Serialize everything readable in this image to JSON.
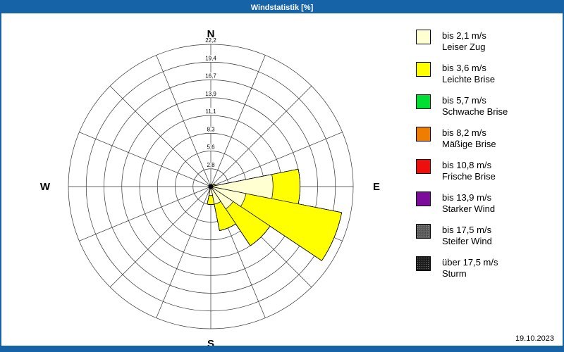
{
  "window": {
    "title": "Windstatistik [%]",
    "date": "19.10.2023"
  },
  "chart_data": {
    "type": "windrose",
    "unit": "%",
    "title": "Windstatistik [%]",
    "grid": true,
    "ring_max": 22.2,
    "ring_labels": [
      "2,8",
      "5,6",
      "8,3",
      "11,1",
      "13,9",
      "16,7",
      "19,4",
      "22,2"
    ],
    "compass_labels": {
      "north": "N",
      "east": "E",
      "south": "S",
      "west": "W"
    },
    "directions": [
      "N",
      "NNE",
      "NE",
      "ENE",
      "E",
      "ESE",
      "SE",
      "SSE",
      "S",
      "SSW",
      "SW",
      "WSW",
      "W",
      "WNW",
      "NW",
      "NNW"
    ],
    "series": [
      {
        "name": "bis 2,1 m/s",
        "color": "#FFFFD2",
        "values": [
          0,
          0,
          0,
          0.3,
          9.7,
          5.6,
          4.2,
          2.8,
          1.4,
          0,
          0,
          0,
          0,
          0,
          0,
          0
        ]
      },
      {
        "name": "bis 3,6 m/s",
        "color": "#FFFF00",
        "values": [
          0,
          0,
          0,
          0.4,
          4.2,
          15.2,
          6.9,
          4.2,
          1.4,
          0,
          0,
          0,
          0,
          0,
          0,
          0
        ]
      },
      {
        "name": "bis 5,7 m/s",
        "color": "#00DD33",
        "values": [
          0,
          0,
          0,
          0,
          0,
          0,
          0,
          0,
          0,
          0,
          0,
          0,
          0,
          0,
          0,
          0
        ]
      },
      {
        "name": "bis 8,2 m/s",
        "color": "#EF7D00",
        "values": [
          0,
          0,
          0,
          0,
          0,
          0,
          0,
          0,
          0,
          0,
          0,
          0,
          0,
          0,
          0,
          0
        ]
      },
      {
        "name": "bis 10,8 m/s",
        "color": "#EE0E0E",
        "values": [
          0,
          0,
          0,
          0,
          0,
          0,
          0,
          0,
          0,
          0,
          0,
          0,
          0,
          0,
          0,
          0
        ]
      },
      {
        "name": "bis 13,9 m/s",
        "color": "#7D0C9C",
        "values": [
          0,
          0,
          0,
          0,
          0,
          0,
          0,
          0,
          0,
          0,
          0,
          0,
          0,
          0,
          0,
          0
        ]
      },
      {
        "name": "bis 17,5 m/s",
        "color": "#5C5C5C",
        "values": [
          0,
          0,
          0,
          0,
          0,
          0,
          0,
          0,
          0,
          0,
          0,
          0,
          0,
          0,
          0,
          0
        ]
      },
      {
        "name": "über 17,5 m/s",
        "color": "#1E1E1E",
        "values": [
          0,
          0,
          0,
          0,
          0,
          0,
          0,
          0,
          0,
          0,
          0,
          0,
          0,
          0,
          0,
          0
        ]
      }
    ]
  },
  "legend": {
    "items": [
      {
        "speed": "bis 2,1 m/s",
        "name": "Leiser Zug",
        "color": "#FFFFD2",
        "speckled": false
      },
      {
        "speed": "bis 3,6 m/s",
        "name": "Leichte Brise",
        "color": "#FFFF00",
        "speckled": false
      },
      {
        "speed": "bis 5,7 m/s",
        "name": "Schwache Brise",
        "color": "#00DD33",
        "speckled": false
      },
      {
        "speed": "bis 8,2 m/s",
        "name": "Mäßige Brise",
        "color": "#EF7D00",
        "speckled": false
      },
      {
        "speed": "bis 10,8 m/s",
        "name": "Frische Brise",
        "color": "#EE0E0E",
        "speckled": false
      },
      {
        "speed": "bis 13,9 m/s",
        "name": "Starker Wind",
        "color": "#7D0C9C",
        "speckled": false
      },
      {
        "speed": "bis 17,5 m/s",
        "name": "Steifer Wind",
        "color": "#5C5C5C",
        "speckled": true
      },
      {
        "speed": "über 17,5 m/s",
        "name": "Sturm",
        "color": "#1E1E1E",
        "speckled": true
      }
    ]
  }
}
